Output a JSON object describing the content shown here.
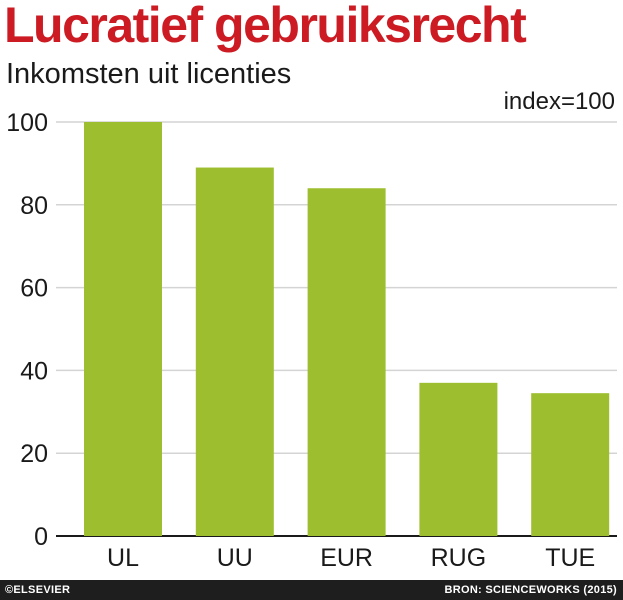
{
  "title": "Lucratief gebruiksrecht",
  "subtitle": "Inkomsten uit licenties",
  "colors": {
    "title": "#cc1b23",
    "bar": "#9dbf2f",
    "grid": "#d4d4d4",
    "axis": "#1a1a1a",
    "footer_bg": "#1e1e1e"
  },
  "footer": {
    "credit": "©ELSEVIER",
    "source": "BRON: SCIENCEWORKS (2015)"
  },
  "chart_data": {
    "type": "bar",
    "title": "Lucratief gebruiksrecht",
    "subtitle": "Inkomsten uit licenties",
    "unit_note": "index=100",
    "categories": [
      "UL",
      "UU",
      "EUR",
      "RUG",
      "TUE"
    ],
    "values": [
      100,
      89,
      84,
      37,
      34.5
    ],
    "ylim": [
      0,
      100
    ],
    "yticks": [
      0,
      20,
      40,
      60,
      80,
      100
    ],
    "grid": true,
    "legend": "none"
  }
}
